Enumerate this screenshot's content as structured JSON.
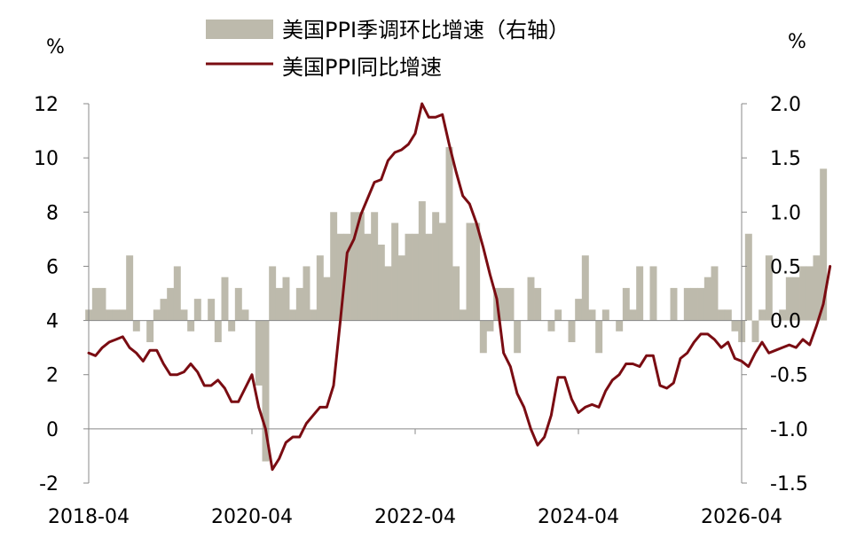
{
  "chart_data": {
    "type": "bar+line",
    "left_axis_unit": "%",
    "right_axis_unit": "%",
    "ylim_left": [
      -2,
      12
    ],
    "ylim_right": [
      -1.5,
      2.0
    ],
    "left_ticks": [
      "12",
      "10",
      "8",
      "6",
      "4",
      "2",
      "0",
      "-2"
    ],
    "right_ticks": [
      "2.0",
      "1.5",
      "1.0",
      "0.5",
      "0.0",
      "-0.5",
      "-1.0",
      "-1.5"
    ],
    "x_tick_labels": [
      "2018-04",
      "2020-04",
      "2022-04",
      "2024-04",
      "2026-04"
    ],
    "x_range": [
      "2018-04",
      "2026-04"
    ],
    "grid": false,
    "legend_position": "top-center",
    "colors": {
      "bar": "#bdbaac",
      "line": "#7a0c12",
      "axis": "#888888"
    },
    "series": [
      {
        "name": "美国PPI季调环比增速（右轴）",
        "type": "bar",
        "axis": "right",
        "start": "2018-04",
        "values": [
          0.1,
          0.3,
          0.3,
          0.1,
          0.1,
          0.1,
          0.6,
          -0.1,
          0.0,
          -0.2,
          0.1,
          0.2,
          0.3,
          0.5,
          0.1,
          -0.1,
          0.2,
          0.0,
          0.2,
          -0.2,
          0.4,
          -0.1,
          0.3,
          0.1,
          0.0,
          -0.6,
          -1.3,
          0.5,
          0.3,
          0.4,
          0.1,
          0.3,
          0.5,
          0.1,
          0.6,
          0.4,
          1.0,
          0.8,
          0.8,
          1.0,
          1.0,
          0.8,
          1.0,
          0.7,
          0.5,
          0.9,
          0.6,
          0.8,
          0.8,
          1.1,
          0.8,
          1.0,
          0.9,
          1.6,
          0.5,
          0.1,
          0.9,
          0.9,
          -0.3,
          -0.1,
          0.3,
          0.3,
          0.3,
          -0.3,
          0.0,
          0.4,
          0.3,
          0.0,
          -0.1,
          0.1,
          0.0,
          -0.2,
          0.2,
          0.6,
          0.1,
          -0.3,
          0.1,
          0.0,
          -0.1,
          0.3,
          0.1,
          0.5,
          0.0,
          0.5,
          0.0,
          0.0,
          0.3,
          0.0,
          0.3,
          0.3,
          0.3,
          0.4,
          0.5,
          0.1,
          0.1,
          -0.1,
          -0.2,
          0.8,
          -0.2,
          0.1,
          0.6,
          0.0,
          0.1,
          0.4,
          0.4,
          0.5,
          0.5,
          0.6,
          1.4
        ]
      },
      {
        "name": "美国PPI同比增速",
        "type": "line",
        "axis": "left",
        "start": "2018-04",
        "values": [
          2.8,
          2.7,
          3.0,
          3.2,
          3.3,
          3.4,
          3.0,
          2.8,
          2.5,
          2.9,
          2.9,
          2.4,
          2.0,
          2.0,
          2.1,
          2.4,
          2.1,
          1.6,
          1.6,
          1.8,
          1.5,
          1.0,
          1.0,
          1.5,
          2.0,
          0.8,
          0.0,
          -1.5,
          -1.1,
          -0.5,
          -0.3,
          -0.3,
          0.2,
          0.5,
          0.8,
          0.8,
          1.6,
          4.0,
          6.5,
          7.0,
          7.9,
          8.5,
          9.1,
          9.2,
          9.9,
          10.2,
          10.3,
          10.5,
          10.9,
          12.0,
          11.5,
          11.5,
          11.6,
          10.5,
          9.5,
          8.6,
          8.3,
          7.6,
          6.7,
          5.7,
          4.8,
          2.8,
          2.3,
          1.3,
          0.8,
          0.0,
          -0.6,
          -0.3,
          0.5,
          1.9,
          1.9,
          1.1,
          0.6,
          0.8,
          0.9,
          0.8,
          1.4,
          1.8,
          2.0,
          2.4,
          2.4,
          2.3,
          2.7,
          2.7,
          1.6,
          1.5,
          1.7,
          2.6,
          2.8,
          3.2,
          3.5,
          3.5,
          3.3,
          3.0,
          3.2,
          2.6,
          2.5,
          2.3,
          2.8,
          3.2,
          2.8,
          2.9,
          3.0,
          3.1,
          3.0,
          3.3,
          3.1,
          3.8,
          4.6,
          6.0
        ]
      }
    ]
  }
}
